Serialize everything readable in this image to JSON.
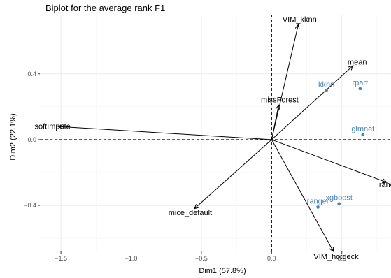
{
  "chart_data": {
    "type": "scatter",
    "title": "Biplot for the average rank F1",
    "xlabel": "Dim1 (57.8%)",
    "ylabel": "Dim2 (22.1%)",
    "xlim": [
      -1.65,
      0.85
    ],
    "ylim": [
      -0.68,
      0.76
    ],
    "x_ticks": [
      -1.5,
      -1.0,
      -0.5,
      0.0,
      0.5
    ],
    "x_tick_labels": [
      "−1.5",
      "−1.0",
      "−0.5",
      "0.0",
      "0.5"
    ],
    "y_ticks": [
      -0.4,
      0.0,
      0.4
    ],
    "y_tick_labels": [
      "−0.4",
      "0.0",
      "0.4"
    ],
    "grid": true,
    "reference_lines": {
      "x": 0,
      "y": 0,
      "style": "dashed"
    },
    "variables": [
      {
        "name": "VIM_kknn",
        "x": 0.19,
        "y": 0.7
      },
      {
        "name": "mean",
        "x": 0.58,
        "y": 0.45
      },
      {
        "name": "missForest",
        "x": 0.05,
        "y": 0.21
      },
      {
        "name": "softImpute",
        "x": -1.52,
        "y": 0.08
      },
      {
        "name": "random",
        "x": 0.82,
        "y": -0.26
      },
      {
        "name": "mice_default",
        "x": -0.55,
        "y": -0.42
      },
      {
        "name": "VIM_hotdeck",
        "x": 0.44,
        "y": -0.68
      }
    ],
    "individuals": [
      {
        "name": "kknn",
        "x": 0.39,
        "y": 0.3
      },
      {
        "name": "rpart",
        "x": 0.63,
        "y": 0.31
      },
      {
        "name": "glmnet",
        "x": 0.65,
        "y": 0.03
      },
      {
        "name": "ranger",
        "x": 0.33,
        "y": -0.41
      },
      {
        "name": "xgboost",
        "x": 0.48,
        "y": -0.39
      }
    ],
    "colors": {
      "variables": "#000000",
      "individuals": "#4682b4",
      "panel_background": "#ffffff",
      "grid_major": "#ebebeb",
      "grid_minor": "#f5f5f5"
    }
  }
}
